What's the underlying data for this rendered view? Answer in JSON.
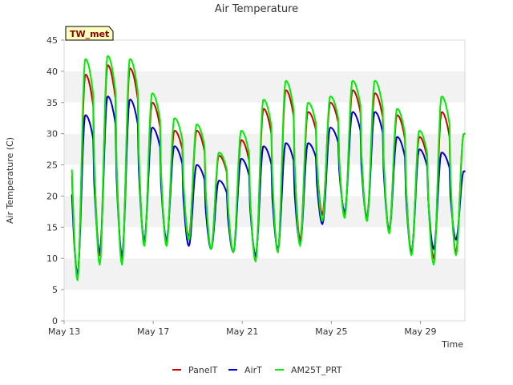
{
  "chart_data": {
    "type": "line",
    "title": "Air Temperature",
    "ylabel": "Air Temperature (C)",
    "xlabel": "Time",
    "badge": "TW_met",
    "ylim": [
      0,
      45
    ],
    "yticks": [
      0,
      5,
      10,
      15,
      20,
      25,
      30,
      35,
      40,
      45
    ],
    "xlim": [
      "2023-05-13",
      "2023-05-31"
    ],
    "xticks": [
      {
        "value": "2023-05-13",
        "label": "May 13"
      },
      {
        "value": "2023-05-17",
        "label": "May 17"
      },
      {
        "value": "2023-05-21",
        "label": "May 21"
      },
      {
        "value": "2023-05-25",
        "label": "May 25"
      },
      {
        "value": "2023-05-29",
        "label": "May 29"
      }
    ],
    "grid": "alternating horizontal bands",
    "legend_position": "bottom",
    "x": [
      "2023-05-13",
      "2023-05-14",
      "2023-05-15",
      "2023-05-16",
      "2023-05-17",
      "2023-05-18",
      "2023-05-19",
      "2023-05-20",
      "2023-05-21",
      "2023-05-22",
      "2023-05-23",
      "2023-05-24",
      "2023-05-25",
      "2023-05-26",
      "2023-05-27",
      "2023-05-28",
      "2023-05-29",
      "2023-05-30"
    ],
    "series": [
      {
        "name": "PanelT",
        "color": "#cc0000",
        "daily_min": [
          7.0,
          10.5,
          10.0,
          12.5,
          12.5,
          13.5,
          11.5,
          11.0,
          10.0,
          11.0,
          13.0,
          17.0,
          17.0,
          16.5,
          14.5,
          11.0,
          10.0,
          11.0
        ],
        "daily_max": [
          39.5,
          41.0,
          40.5,
          35.0,
          30.5,
          30.5,
          26.5,
          29.0,
          34.0,
          37.0,
          33.5,
          35.0,
          37.0,
          36.5,
          33.0,
          29.5,
          33.5,
          30.0
        ]
      },
      {
        "name": "AirT",
        "color": "#0000cc",
        "daily_min": [
          7.5,
          11.0,
          10.5,
          13.0,
          13.0,
          12.0,
          11.5,
          11.0,
          10.5,
          11.5,
          12.5,
          15.5,
          17.5,
          16.5,
          14.5,
          11.0,
          11.5,
          13.0
        ],
        "daily_max": [
          33.0,
          36.0,
          35.5,
          31.0,
          28.0,
          25.0,
          22.5,
          26.0,
          28.0,
          28.5,
          28.5,
          31.0,
          33.5,
          33.5,
          29.5,
          27.5,
          27.0,
          24.0
        ],
        "note_curve": "AirT lags and peaks lower than the radiation-exposed sensors"
      },
      {
        "name": "AM25T_PRT",
        "color": "#00ee00",
        "daily_min": [
          6.5,
          9.0,
          9.0,
          12.0,
          12.0,
          13.0,
          11.5,
          11.0,
          9.5,
          11.0,
          12.0,
          16.0,
          16.5,
          16.0,
          14.0,
          10.5,
          9.0,
          10.5
        ],
        "daily_max": [
          42.0,
          42.5,
          42.0,
          36.5,
          32.5,
          31.5,
          27.0,
          30.5,
          35.5,
          38.5,
          35.0,
          36.0,
          38.5,
          38.5,
          34.0,
          30.5,
          36.0,
          30.0
        ]
      }
    ]
  }
}
